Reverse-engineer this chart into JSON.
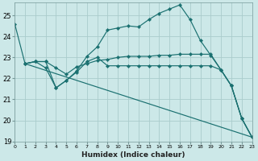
{
  "xlabel": "Humidex (Indice chaleur)",
  "bg_color": "#cce8e8",
  "grid_color": "#aacccc",
  "line_color": "#1a7070",
  "xlim": [
    0,
    23
  ],
  "ylim": [
    19,
    25.6
  ],
  "yticks": [
    19,
    20,
    21,
    22,
    23,
    24,
    25
  ],
  "xticks": [
    0,
    1,
    2,
    3,
    4,
    5,
    6,
    7,
    8,
    9,
    10,
    11,
    12,
    13,
    14,
    15,
    16,
    17,
    18,
    19,
    20,
    21,
    22,
    23
  ],
  "series": [
    {
      "x": [
        0,
        1,
        2,
        3,
        4,
        5,
        6,
        7,
        8,
        9,
        10,
        11,
        12,
        13,
        14,
        15,
        16,
        17,
        18,
        19,
        20,
        21,
        22,
        23
      ],
      "y": [
        24.6,
        22.7,
        22.8,
        22.8,
        21.55,
        21.9,
        22.35,
        23.05,
        23.5,
        24.3,
        24.4,
        24.5,
        24.45,
        24.8,
        25.1,
        25.3,
        25.5,
        24.8,
        23.8,
        23.1,
        22.4,
        21.65,
        20.1,
        19.2
      ],
      "has_markers": true
    },
    {
      "x": [
        1,
        2,
        3,
        4,
        5,
        6,
        7,
        8,
        9,
        10,
        11,
        12,
        13,
        14,
        15,
        16,
        17,
        18,
        19,
        20,
        21,
        22,
        23
      ],
      "y": [
        22.7,
        22.8,
        22.8,
        22.5,
        22.2,
        22.55,
        22.7,
        22.85,
        22.9,
        23.0,
        23.05,
        23.05,
        23.05,
        23.1,
        23.1,
        23.15,
        23.15,
        23.15,
        23.15,
        22.4,
        21.65,
        20.1,
        19.2
      ],
      "has_markers": true
    },
    {
      "x": [
        1,
        2,
        3,
        4,
        5,
        6,
        7,
        8,
        9,
        10,
        11,
        12,
        13,
        14,
        15,
        16,
        17,
        18,
        19,
        20,
        21,
        22,
        23
      ],
      "y": [
        22.7,
        22.8,
        22.5,
        21.55,
        21.9,
        22.3,
        22.8,
        23.0,
        22.6,
        22.6,
        22.6,
        22.6,
        22.6,
        22.6,
        22.6,
        22.6,
        22.6,
        22.6,
        22.6,
        22.4,
        21.65,
        20.1,
        19.2
      ],
      "has_markers": true
    },
    {
      "x": [
        1,
        23
      ],
      "y": [
        22.7,
        19.2
      ],
      "has_markers": false
    }
  ]
}
